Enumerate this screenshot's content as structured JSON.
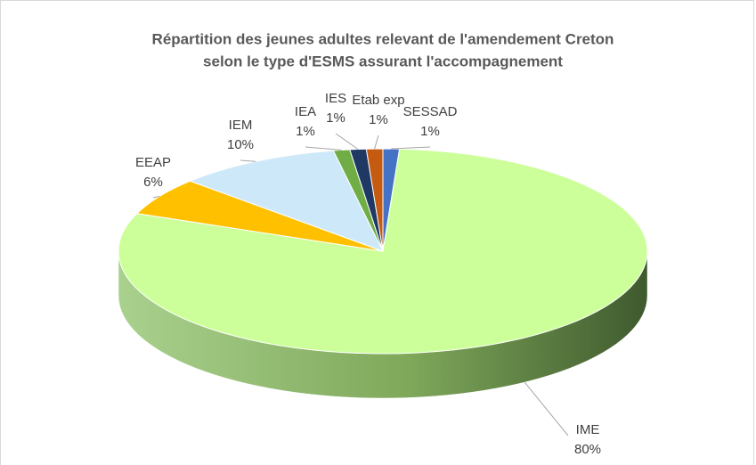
{
  "chart_data": {
    "type": "pie",
    "title": "Répartition des jeunes adultes relevant de l'amendement Creton",
    "subtitle": "selon le type d'ESMS assurant l'accompagnement",
    "categories": [
      "SESSAD",
      "IME",
      "EEAP",
      "IEM",
      "IEA",
      "IES",
      "Etab exp"
    ],
    "values": [
      1,
      80,
      6,
      10,
      1,
      1,
      1
    ],
    "value_labels": [
      "1%",
      "80%",
      "6%",
      "10%",
      "1%",
      "1%",
      "1%"
    ],
    "colors": [
      "#4472c4",
      "#ccff99",
      "#ffc000",
      "#cde9f9",
      "#70ad47",
      "#1f3864",
      "#c55a11"
    ]
  }
}
